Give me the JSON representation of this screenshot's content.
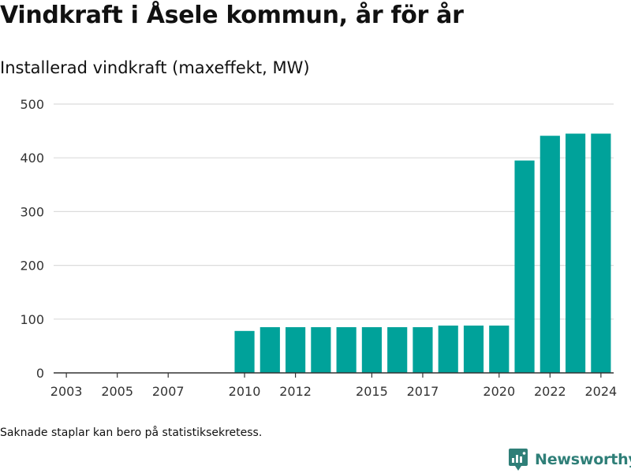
{
  "title": "Vindkraft i Åsele kommun, år för år",
  "subtitle": "Installerad vindkraft (maxeffekt, MW)",
  "footnote": "Saknade staplar kan bero på statistiksekretess.",
  "brand": {
    "name": "Newsworthy",
    "icon": "newsworthy-logo-icon",
    "color": "#2f7f78"
  },
  "chart_data": {
    "type": "bar",
    "title": "",
    "xlabel": "",
    "ylabel": "",
    "categories": [
      "2003",
      "2004",
      "2005",
      "2006",
      "2007",
      "2008",
      "2009",
      "2010",
      "2011",
      "2012",
      "2013",
      "2014",
      "2015",
      "2016",
      "2017",
      "2018",
      "2019",
      "2020",
      "2021",
      "2022",
      "2023",
      "2024"
    ],
    "values": [
      null,
      null,
      null,
      null,
      null,
      null,
      null,
      78,
      85,
      85,
      85,
      85,
      85,
      85,
      85,
      88,
      88,
      88,
      395,
      441,
      445,
      445
    ],
    "x_tick_labels": [
      "2003",
      "2005",
      "2007",
      "2010",
      "2012",
      "2015",
      "2017",
      "2020",
      "2022",
      "2024"
    ],
    "y_ticks": [
      0,
      100,
      200,
      300,
      400,
      500
    ],
    "ylim": [
      0,
      500
    ],
    "bar_color": "#00a29a",
    "grid": true
  }
}
